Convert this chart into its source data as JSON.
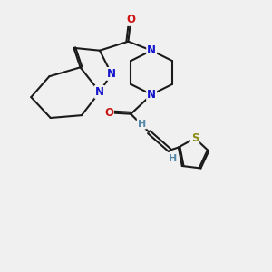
{
  "bg_color": "#f0f0f0",
  "bond_color": "#1a1a1a",
  "n_color": "#1414cc",
  "o_color": "#cc1414",
  "s_color": "#8b8b14",
  "h_color": "#5588aa",
  "lw": 1.5,
  "fs": 8.5,
  "xlim": [
    0,
    10.5
  ],
  "ylim": [
    0,
    10.5
  ]
}
